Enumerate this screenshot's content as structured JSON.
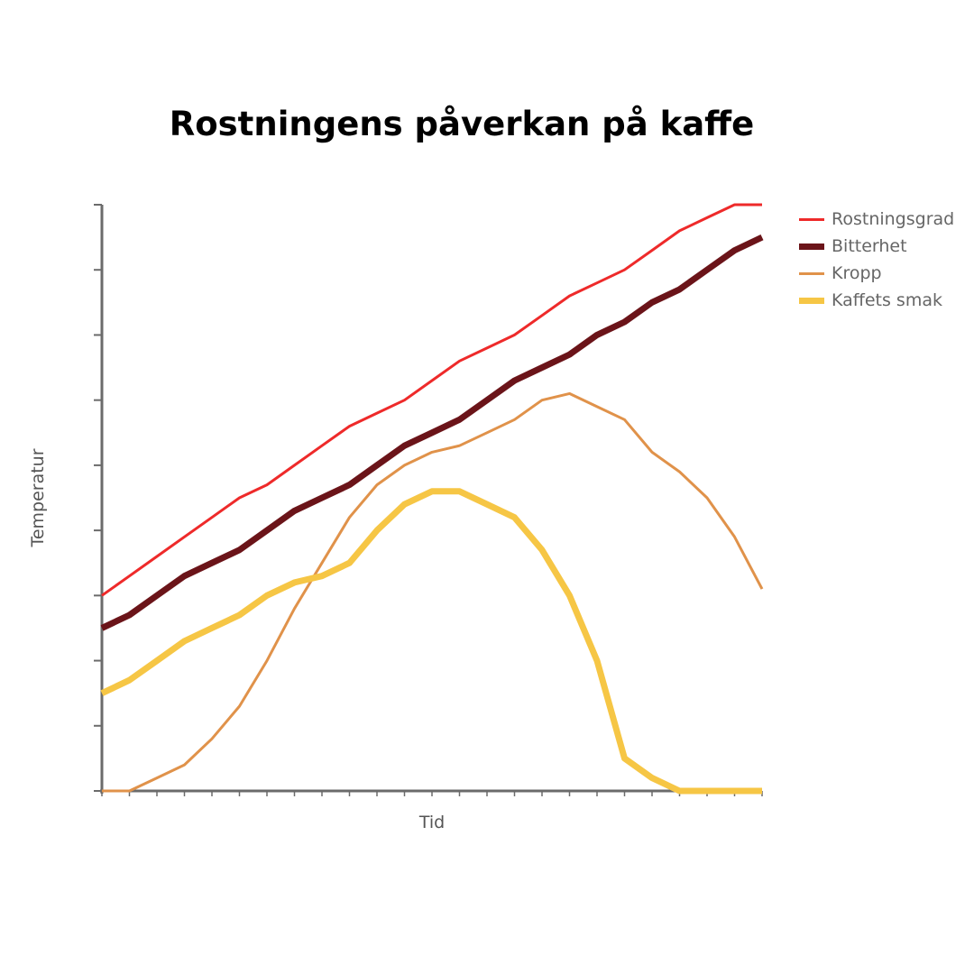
{
  "title": "Rostningens påverkan på kaffe",
  "chart_data": {
    "type": "line",
    "title": "Rostningens påverkan på kaffe",
    "xlabel": "Tid",
    "ylabel": "Temperatur",
    "x": [
      0,
      1,
      2,
      3,
      4,
      5,
      6,
      7,
      8,
      9,
      10,
      11,
      12,
      13,
      14,
      15,
      16,
      17,
      18,
      19,
      20,
      21,
      22,
      23,
      24
    ],
    "ylim": [
      0,
      9
    ],
    "grid": false,
    "legend_position": "top-right",
    "series": [
      {
        "name": "Rostningsgrad",
        "color": "#ee2a2a",
        "line": "thin",
        "values": [
          3.0,
          3.3,
          3.6,
          3.9,
          4.2,
          4.5,
          4.7,
          5.0,
          5.3,
          5.6,
          5.8,
          6.0,
          6.3,
          6.6,
          6.8,
          7.0,
          7.3,
          7.6,
          7.8,
          8.0,
          8.3,
          8.6,
          8.8,
          9.0,
          9.0
        ]
      },
      {
        "name": "Bitterhet",
        "color": "#6b1419",
        "line": "thick",
        "values": [
          2.5,
          2.7,
          3.0,
          3.3,
          3.5,
          3.7,
          4.0,
          4.3,
          4.5,
          4.7,
          5.0,
          5.3,
          5.5,
          5.7,
          6.0,
          6.3,
          6.5,
          6.7,
          7.0,
          7.2,
          7.5,
          7.7,
          8.0,
          8.3,
          8.5
        ]
      },
      {
        "name": "Kropp",
        "color": "#e0924a",
        "line": "thin",
        "values": [
          0.0,
          0.0,
          0.2,
          0.4,
          0.8,
          1.3,
          2.0,
          2.8,
          3.5,
          4.2,
          4.7,
          5.0,
          5.2,
          5.3,
          5.5,
          5.7,
          6.0,
          6.1,
          5.9,
          5.7,
          5.2,
          4.9,
          4.5,
          3.9,
          3.1
        ]
      },
      {
        "name": "Kaffets smak",
        "color": "#f6c645",
        "line": "thick",
        "values": [
          1.5,
          1.7,
          2.0,
          2.3,
          2.5,
          2.7,
          3.0,
          3.2,
          3.3,
          3.5,
          4.0,
          4.4,
          4.6,
          4.6,
          4.4,
          4.2,
          3.7,
          3.0,
          2.0,
          0.5,
          0.2,
          0.0,
          0.0,
          0.0,
          0.0
        ]
      }
    ]
  }
}
